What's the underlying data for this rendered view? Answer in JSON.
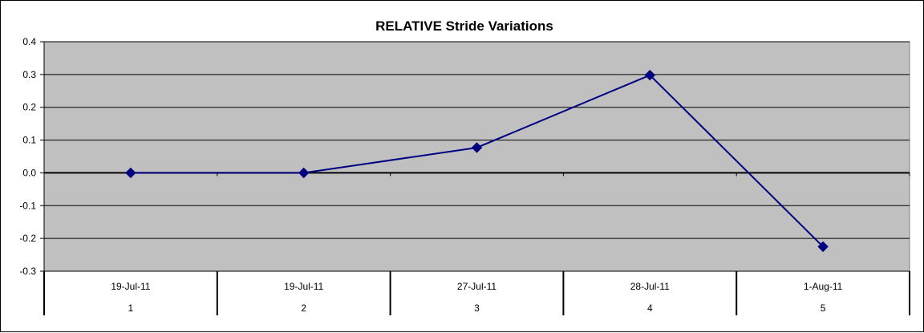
{
  "chart_data": {
    "type": "line",
    "title": "RELATIVE Stride Variations",
    "xlabel": "",
    "ylabel": "",
    "categories": [
      {
        "date": "19-Jul-11",
        "index": "1"
      },
      {
        "date": "19-Jul-11",
        "index": "2"
      },
      {
        "date": "27-Jul-11",
        "index": "3"
      },
      {
        "date": "28-Jul-11",
        "index": "4"
      },
      {
        "date": "1-Aug-11",
        "index": "5"
      }
    ],
    "series": [
      {
        "values": [
          0.0,
          0.0,
          0.077,
          0.298,
          -0.225
        ]
      }
    ],
    "ylim": [
      -0.3,
      0.4
    ],
    "yticks": [
      "0.4",
      "0.3",
      "0.2",
      "0.1",
      "0.0",
      "-0.1",
      "-0.2",
      "-0.3"
    ],
    "ytick_values": [
      0.4,
      0.3,
      0.2,
      0.1,
      0.0,
      -0.1,
      -0.2,
      -0.3
    ],
    "grid": true,
    "legend": "none",
    "colors": {
      "plot_background": "#c0c0c0",
      "line": "#000080",
      "marker": "#000080",
      "gridline": "#000000"
    }
  }
}
